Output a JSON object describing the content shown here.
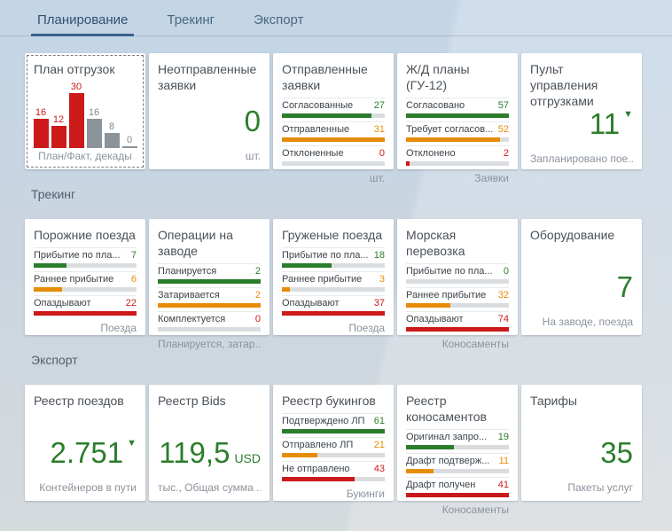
{
  "colors": {
    "good": "#2b7d2b",
    "warning": "#e78c07",
    "error": "#cc1919",
    "neutral": "#8b949b",
    "tab_underline": "#3a618c"
  },
  "icons": {
    "trend_down": "▼"
  },
  "tabs": [
    {
      "id": "planning",
      "label": "Планирование",
      "active": true
    },
    {
      "id": "tracking",
      "label": "Трекинг",
      "active": false
    },
    {
      "id": "export",
      "label": "Экспорт",
      "active": false
    }
  ],
  "sections": [
    {
      "id": "planning",
      "label": null,
      "tiles": [
        {
          "id": "shipment-plan",
          "type": "bar-chart",
          "title": "План отгрузок",
          "selected": true,
          "caption": "План/Факт, декады",
          "bars": [
            {
              "value": 16,
              "state": "error"
            },
            {
              "value": 12,
              "state": "error"
            },
            {
              "value": 30,
              "state": "error"
            },
            {
              "value": 16,
              "state": "neutral"
            },
            {
              "value": 8,
              "state": "neutral"
            },
            {
              "value": 0,
              "state": "neutral"
            }
          ]
        },
        {
          "id": "unsent-requests",
          "type": "kpi",
          "title": "Неотправленные заявки",
          "value": "0",
          "footer": "шт.",
          "footer_align": "right"
        },
        {
          "id": "sent-requests",
          "type": "comparison",
          "title": "Отправленные заявки",
          "footer": "шт.",
          "footer_align": "right",
          "rows": [
            {
              "label": "Согласованные",
              "value": 27,
              "state": "good"
            },
            {
              "label": "Отправленные",
              "value": 31,
              "state": "warning"
            },
            {
              "label": "Отклоненные",
              "value": 0,
              "state": "error"
            }
          ]
        },
        {
          "id": "rail-plans-gu12",
          "type": "comparison",
          "title": "Ж/Д планы (ГУ-12)",
          "footer": "Заявки",
          "footer_align": "right",
          "rows": [
            {
              "label": "Согласовано",
              "value": 57,
              "state": "good"
            },
            {
              "label": "Требует согласов...",
              "value": 52,
              "state": "warning"
            },
            {
              "label": "Отклонено",
              "value": 2,
              "state": "error"
            }
          ]
        },
        {
          "id": "shipment-control-panel",
          "type": "kpi",
          "title": "Пульт управления отгрузками",
          "value": "11",
          "indicator": "down",
          "footer": "Запланировано пое...",
          "footer_align": "left"
        }
      ]
    },
    {
      "id": "tracking",
      "label": "Трекинг",
      "tiles": [
        {
          "id": "empty-trains",
          "type": "comparison",
          "title": "Порожние поезда",
          "footer": "Поезда",
          "footer_align": "right",
          "rows": [
            {
              "label": "Прибытие по пла...",
              "value": 7,
              "state": "good"
            },
            {
              "label": "Раннее прибытие",
              "value": 6,
              "state": "warning"
            },
            {
              "label": "Опаздывают",
              "value": 22,
              "state": "error"
            }
          ]
        },
        {
          "id": "plant-operations",
          "type": "comparison",
          "title": "Операции на заводе",
          "footer": "Планируется, затар...",
          "footer_align": "left",
          "rows": [
            {
              "label": "Планируется",
              "value": 2,
              "state": "good"
            },
            {
              "label": "Затаривается",
              "value": 2,
              "state": "warning"
            },
            {
              "label": "Комплектуется",
              "value": 0,
              "state": "error"
            }
          ]
        },
        {
          "id": "loaded-trains",
          "type": "comparison",
          "title": "Груженые поезда",
          "footer": "Поезда",
          "footer_align": "right",
          "rows": [
            {
              "label": "Прибытие по пла...",
              "value": 18,
              "state": "good"
            },
            {
              "label": "Раннее прибытие",
              "value": 3,
              "state": "warning"
            },
            {
              "label": "Опаздывают",
              "value": 37,
              "state": "error"
            }
          ]
        },
        {
          "id": "sea-transport",
          "type": "comparison",
          "title": "Морская перевозка",
          "footer": "Коносаменты",
          "footer_align": "right",
          "rows": [
            {
              "label": "Прибытие по пла...",
              "value": 0,
              "state": "good"
            },
            {
              "label": "Раннее прибытие",
              "value": 32,
              "state": "warning"
            },
            {
              "label": "Опаздывают",
              "value": 74,
              "state": "error"
            }
          ]
        },
        {
          "id": "equipment",
          "type": "kpi",
          "title": "Оборудование",
          "value": "7",
          "footer": "На заводе, поезда",
          "footer_align": "right"
        }
      ]
    },
    {
      "id": "export",
      "label": "Экспорт",
      "tiles": [
        {
          "id": "train-registry",
          "type": "kpi",
          "title": "Реестр поездов",
          "value": "2.751",
          "indicator": "down",
          "footer": "Контейнеров в пути",
          "footer_align": "right"
        },
        {
          "id": "bids-registry",
          "type": "kpi",
          "title": "Реестр Bids",
          "value": "119,5",
          "unit": "USD",
          "footer": "тыс., Общая сумма ...",
          "footer_align": "left"
        },
        {
          "id": "booking-registry",
          "type": "comparison",
          "title": "Реестр букингов",
          "footer": "Букинги",
          "footer_align": "right",
          "rows": [
            {
              "label": "Подтверждено ЛП",
              "value": 61,
              "state": "good"
            },
            {
              "label": "Отправлено ЛП",
              "value": 21,
              "state": "warning"
            },
            {
              "label": "Не отправлено",
              "value": 43,
              "state": "error"
            }
          ]
        },
        {
          "id": "bol-registry",
          "type": "comparison",
          "title": "Реестр коносаментов",
          "footer": "Коносаменты",
          "footer_align": "right",
          "rows": [
            {
              "label": "Оригинал запро...",
              "value": 19,
              "state": "good"
            },
            {
              "label": "Драфт подтверж...",
              "value": 11,
              "state": "warning"
            },
            {
              "label": "Драфт получен",
              "value": 41,
              "state": "error"
            }
          ]
        },
        {
          "id": "tariffs",
          "type": "kpi",
          "title": "Тарифы",
          "value": "35",
          "footer": "Пакеты услуг",
          "footer_align": "right"
        }
      ]
    }
  ]
}
